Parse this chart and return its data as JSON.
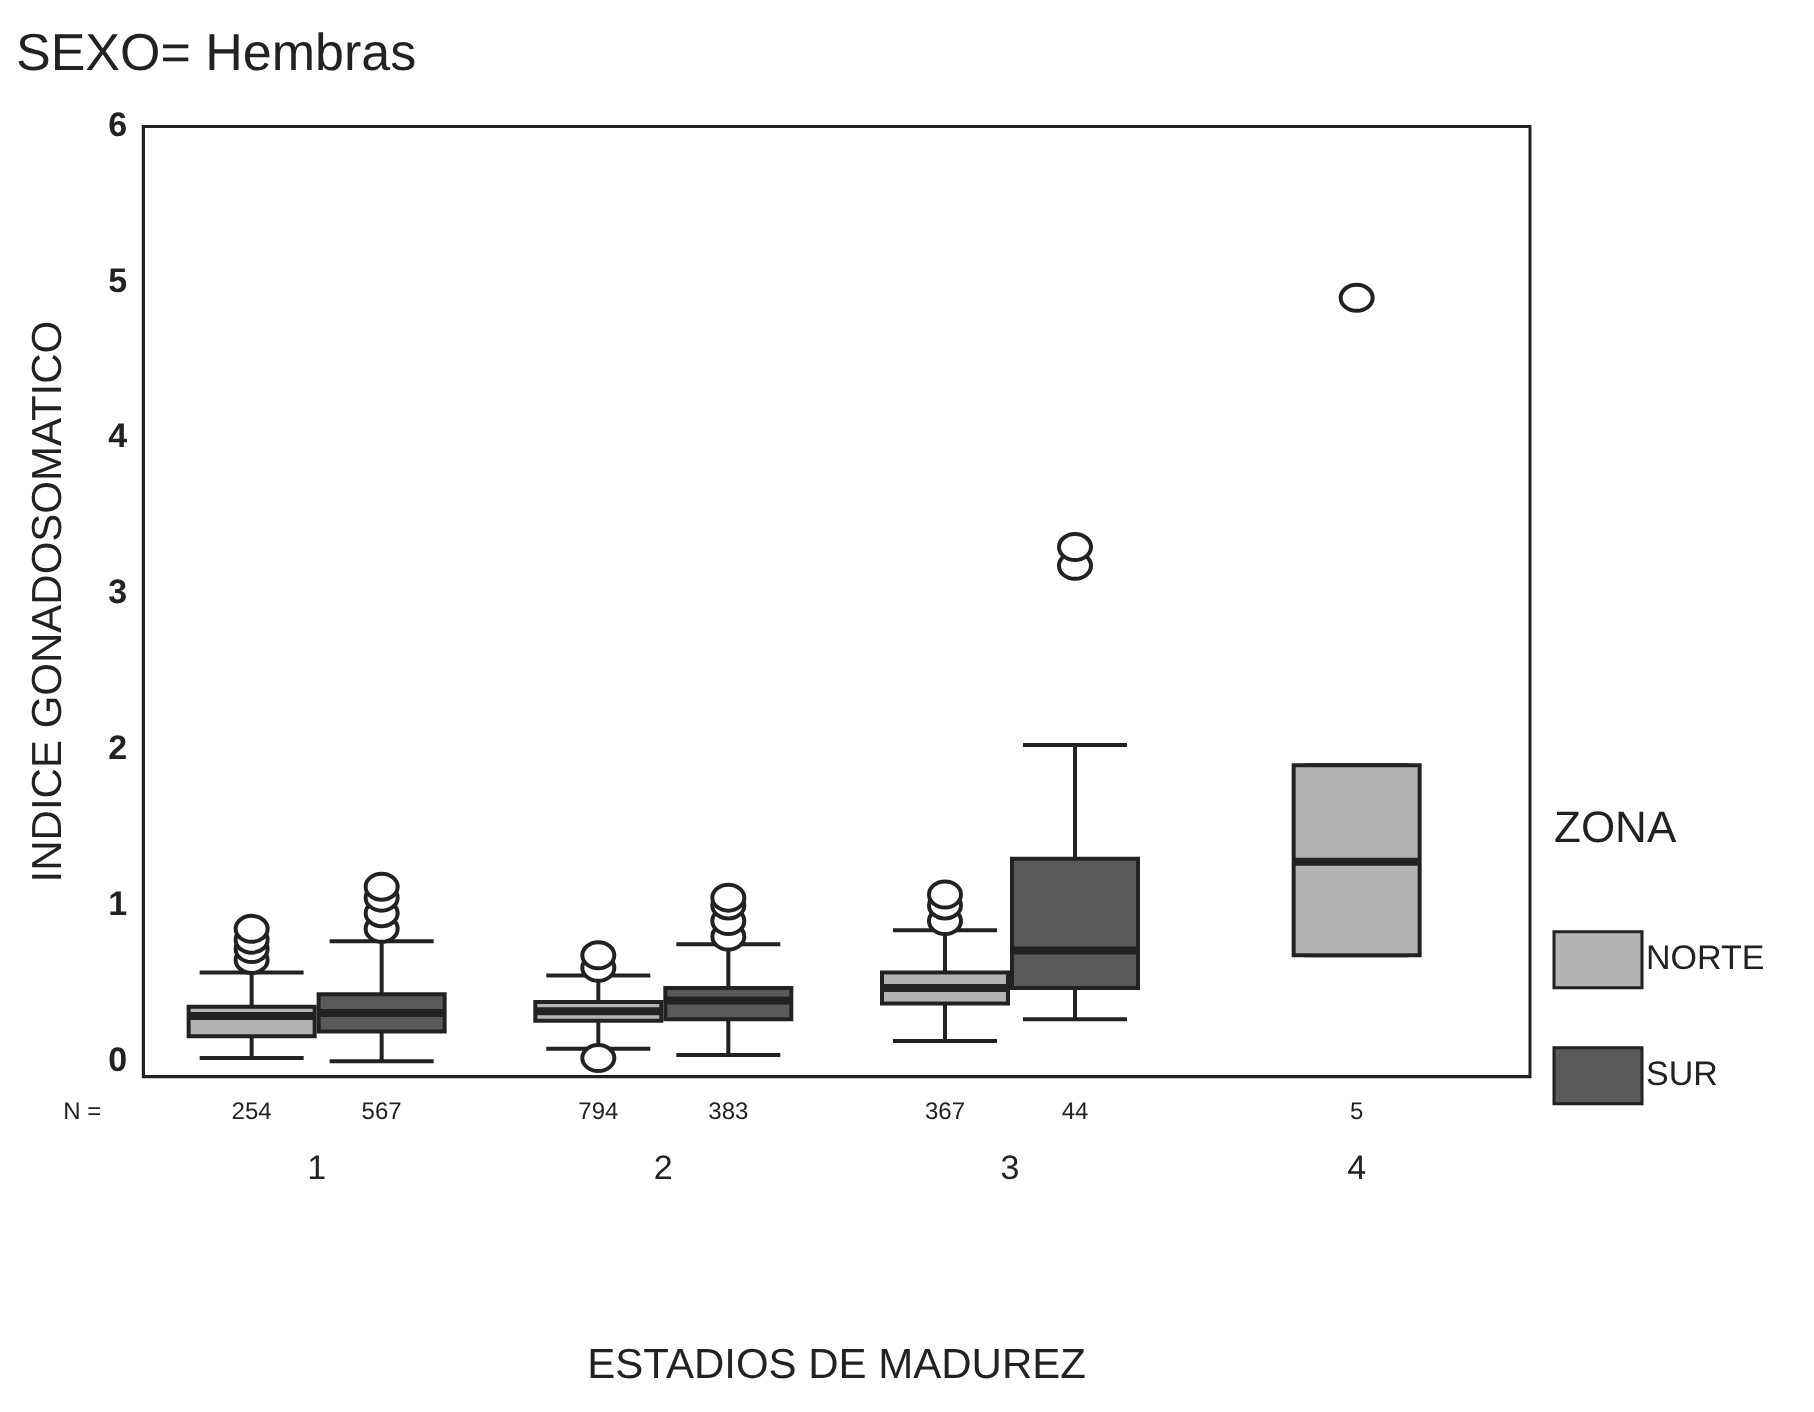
{
  "chart_data": {
    "type": "box",
    "title": "SEXO= Hembras",
    "xlabel": "ESTADIOS DE MADUREZ",
    "ylabel": "INDICE GONADOSOMATICO",
    "legend_title": "ZONA",
    "legend": "right",
    "categories": [
      "1",
      "2",
      "3",
      "4"
    ],
    "ylim": [
      -0.1,
      6
    ],
    "yticks": [
      0,
      1,
      2,
      3,
      4,
      5,
      6
    ],
    "series": [
      {
        "name": "NORTE",
        "color": "#b4b4b4",
        "boxes": [
          {
            "low": 0.02,
            "q1": 0.16,
            "median": 0.29,
            "q3": 0.35,
            "high": 0.57,
            "outliers": [
              0.65,
              0.72,
              0.78,
              0.85
            ]
          },
          {
            "low": 0.08,
            "q1": 0.26,
            "median": 0.32,
            "q3": 0.38,
            "high": 0.55,
            "outliers": [
              0.02,
              0.6,
              0.68
            ]
          },
          {
            "low": 0.13,
            "q1": 0.37,
            "median": 0.47,
            "q3": 0.57,
            "high": 0.84,
            "outliers": [
              0.9,
              1.0,
              1.07
            ]
          },
          {
            "low": 0.68,
            "q1": 0.68,
            "median": 1.28,
            "q3": 1.9,
            "high": 1.9,
            "outliers": [
              4.9
            ]
          }
        ]
      },
      {
        "name": "SUR",
        "color": "#5a5a5a",
        "boxes": [
          {
            "low": 0.0,
            "q1": 0.19,
            "median": 0.31,
            "q3": 0.43,
            "high": 0.77,
            "outliers": [
              0.85,
              0.95,
              1.05,
              1.12
            ]
          },
          {
            "low": 0.04,
            "q1": 0.27,
            "median": 0.39,
            "q3": 0.47,
            "high": 0.75,
            "outliers": [
              0.8,
              0.9,
              1.0,
              1.05
            ]
          },
          {
            "low": 0.27,
            "q1": 0.47,
            "median": 0.71,
            "q3": 1.3,
            "high": 2.03,
            "outliers": [
              3.18,
              3.3
            ]
          },
          null
        ]
      }
    ],
    "annotations": [
      "N =",
      "254",
      "567",
      "794",
      "383",
      "367",
      "44",
      "5"
    ]
  }
}
